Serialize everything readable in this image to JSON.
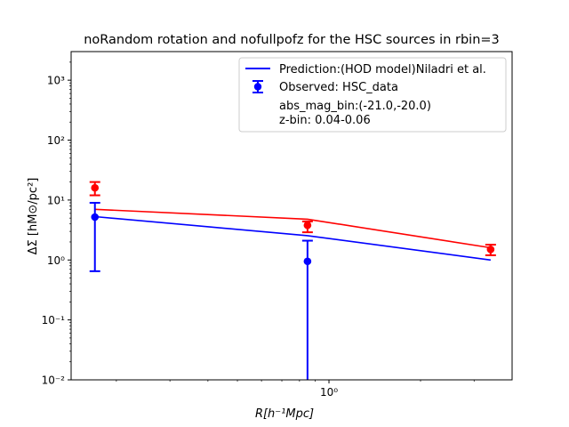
{
  "chart_data": {
    "type": "line",
    "title": "noRandom rotation and nofullpofz for the HSC sources in rbin=3",
    "xlabel": "R[h⁻¹Mpc]",
    "ylabel": "ΔΣ [hM⊙/pc²]",
    "xscale": "log",
    "yscale": "log",
    "xlim": [
      0.142,
      4.0
    ],
    "ylim": [
      0.01,
      3000
    ],
    "x_ticks": [
      {
        "value": 1,
        "label": "10⁰"
      }
    ],
    "y_ticks": [
      {
        "value": 0.01,
        "label": "10⁻²"
      },
      {
        "value": 0.1,
        "label": "10⁻¹"
      },
      {
        "value": 1,
        "label": "10⁰"
      },
      {
        "value": 10,
        "label": "10¹"
      },
      {
        "value": 100,
        "label": "10²"
      },
      {
        "value": 1000,
        "label": "10³"
      }
    ],
    "series": [
      {
        "name": "Prediction:(HOD model)Niladri et al.",
        "kind": "line",
        "color": "#0000ff",
        "x": [
          0.17,
          0.85,
          3.4
        ],
        "y": [
          5.3,
          2.55,
          1.0
        ]
      },
      {
        "name": "",
        "kind": "line",
        "color": "#ff0000",
        "x": [
          0.17,
          0.85,
          3.4
        ],
        "y": [
          7.0,
          4.8,
          1.6
        ]
      },
      {
        "name": "HSC_data",
        "kind": "errorbar",
        "color": "#0000ff",
        "x": [
          0.17,
          0.85
        ],
        "y": [
          5.2,
          0.95
        ],
        "yerr_low": [
          0.65,
          0.01
        ],
        "yerr_high": [
          9.0,
          2.1
        ]
      },
      {
        "name": "",
        "kind": "errorbar",
        "color": "#ff0000",
        "x": [
          0.17,
          0.85,
          3.4
        ],
        "y": [
          16.0,
          3.8,
          1.5
        ],
        "yerr_low": [
          12.0,
          2.9,
          1.2
        ],
        "yerr_high": [
          20.0,
          4.4,
          1.8
        ]
      }
    ],
    "legend": {
      "position": "top-right",
      "entries": [
        {
          "label": "Prediction:(HOD model)Niladri et al.",
          "marker": "line",
          "color": "#0000ff"
        },
        {
          "label": "Observed: HSC_data",
          "marker": "errorbar",
          "color": "#0000ff"
        },
        {
          "label": "abs_mag_bin:(-21.0,-20.0)",
          "marker": "none"
        },
        {
          "label": "z-bin: 0.04-0.06",
          "marker": "none"
        }
      ]
    }
  }
}
